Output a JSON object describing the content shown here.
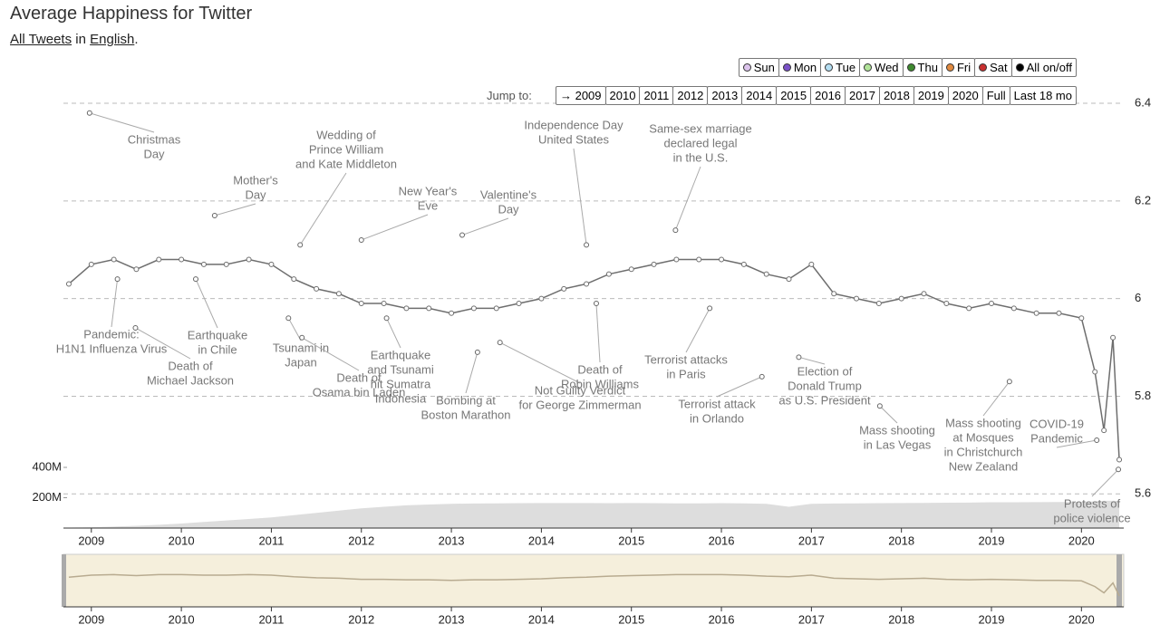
{
  "header": {
    "title": "Average Happiness for Twitter",
    "subtitle": [
      "All Tweets",
      "in",
      "English",
      "."
    ]
  },
  "controls": {
    "days": [
      {
        "name": "Sun",
        "color": "#dcc4ec"
      },
      {
        "name": "Mon",
        "color": "#7b52c8"
      },
      {
        "name": "Tue",
        "color": "#b4def2"
      },
      {
        "name": "Wed",
        "color": "#b2e49a"
      },
      {
        "name": "Thu",
        "color": "#3f8a30"
      },
      {
        "name": "Fri",
        "color": "#e08a40"
      },
      {
        "name": "Sat",
        "color": "#c83030"
      },
      {
        "name": "All on/off",
        "color": "#000000"
      }
    ],
    "jump_label": "Jump to:",
    "jump": [
      "→ 2009",
      "2010",
      "2011",
      "2012",
      "2013",
      "2014",
      "2015",
      "2016",
      "2017",
      "2018",
      "2019",
      "2020",
      "Full",
      "Last 18 mo"
    ]
  },
  "chart_data": {
    "type": "line",
    "x": [
      2008.75,
      2009.0,
      2009.25,
      2009.5,
      2009.75,
      2010.0,
      2010.25,
      2010.5,
      2010.75,
      2011.0,
      2011.25,
      2011.5,
      2011.75,
      2012.0,
      2012.25,
      2012.5,
      2012.75,
      2013.0,
      2013.25,
      2013.5,
      2013.75,
      2014.0,
      2014.25,
      2014.5,
      2014.75,
      2015.0,
      2015.25,
      2015.5,
      2015.75,
      2016.0,
      2016.25,
      2016.5,
      2016.75,
      2017.0,
      2017.25,
      2017.5,
      2017.75,
      2018.0,
      2018.25,
      2018.5,
      2018.75,
      2019.0,
      2019.25,
      2019.5,
      2019.75,
      2020.0,
      2020.15,
      2020.25,
      2020.35,
      2020.42
    ],
    "series": [
      {
        "color": "#6e6e6e",
        "values": [
          6.03,
          6.07,
          6.08,
          6.06,
          6.08,
          6.08,
          6.07,
          6.07,
          6.08,
          6.07,
          6.04,
          6.02,
          6.01,
          5.99,
          5.99,
          5.98,
          5.98,
          5.97,
          5.98,
          5.98,
          5.99,
          6.0,
          6.02,
          6.03,
          6.05,
          6.06,
          6.07,
          6.08,
          6.08,
          6.08,
          6.07,
          6.05,
          6.04,
          6.07,
          6.01,
          6.0,
          5.99,
          6.0,
          6.01,
          5.99,
          5.98,
          5.99,
          5.98,
          5.97,
          5.97,
          5.96,
          5.85,
          5.73,
          5.92,
          5.67
        ]
      },
      {
        "color": "#dddddd",
        "axis": "y2",
        "values": [
          3000000,
          5000000,
          10000000,
          15000000,
          22000000,
          30000000,
          40000000,
          50000000,
          60000000,
          70000000,
          85000000,
          100000000,
          115000000,
          130000000,
          140000000,
          150000000,
          155000000,
          160000000,
          162000000,
          163000000,
          164000000,
          165000000,
          165000000,
          165000000,
          164000000,
          165000000,
          164000000,
          163000000,
          163000000,
          164000000,
          163000000,
          160000000,
          140000000,
          160000000,
          162000000,
          163000000,
          164000000,
          165000000,
          166000000,
          167000000,
          168000000,
          170000000,
          170000000,
          171000000,
          172000000,
          173000000,
          176000000,
          180000000,
          180000000,
          178000000
        ]
      }
    ],
    "xlim": [
      2008.69,
      2020.47
    ],
    "xticks": [
      2009,
      2010,
      2011,
      2012,
      2013,
      2014,
      2015,
      2016,
      2017,
      2018,
      2019,
      2020
    ],
    "ylim": [
      5.53,
      6.4
    ],
    "yticks": [
      5.6,
      5.8,
      6.0,
      6.2,
      6.4
    ],
    "y2lim": [
      0,
      2800000000
    ],
    "y2ticks": [
      {
        "value": 200000000,
        "label": "200M"
      },
      {
        "value": 400000000,
        "label": "400M"
      }
    ],
    "grid": true,
    "annotations": [
      {
        "text": [
          "Christmas",
          "Day"
        ],
        "x": 2008.98,
        "y": 6.38
      },
      {
        "text": [
          "Pandemic:",
          "H1N1 Influenza Virus"
        ],
        "x": 2009.29,
        "y": 6.04
      },
      {
        "text": [
          "Death of",
          "Michael Jackson"
        ],
        "x": 2009.49,
        "y": 5.94
      },
      {
        "text": [
          "Mother's",
          "Day"
        ],
        "x": 2010.37,
        "y": 6.17
      },
      {
        "text": [
          "Earthquake",
          "in Chile"
        ],
        "x": 2010.16,
        "y": 6.04
      },
      {
        "text": [
          "Wedding of",
          "Prince William",
          "and Kate Middleton"
        ],
        "x": 2011.32,
        "y": 6.11
      },
      {
        "text": [
          "Tsunami in",
          "Japan"
        ],
        "x": 2011.19,
        "y": 5.96
      },
      {
        "text": [
          "Death of",
          "Osama bin Laden"
        ],
        "x": 2011.34,
        "y": 5.92
      },
      {
        "text": [
          "New Year's",
          "Eve"
        ],
        "x": 2012.0,
        "y": 6.12
      },
      {
        "text": [
          "Earthquake",
          "and Tsunami",
          "hit Sumatra",
          "Indonesia"
        ],
        "x": 2012.28,
        "y": 5.96
      },
      {
        "text": [
          "Valentine's",
          "Day"
        ],
        "x": 2013.12,
        "y": 6.13
      },
      {
        "text": [
          "Bombing at",
          "Boston Marathon"
        ],
        "x": 2013.29,
        "y": 5.89
      },
      {
        "text": [
          "Not Guilty Verdict",
          "for George Zimmerman"
        ],
        "x": 2013.54,
        "y": 5.91
      },
      {
        "text": [
          "Independence Day",
          "United States"
        ],
        "x": 2014.5,
        "y": 6.11
      },
      {
        "text": [
          "Death of",
          "Robin Williams"
        ],
        "x": 2014.61,
        "y": 5.99
      },
      {
        "text": [
          "Same-sex marriage",
          "declared legal",
          "in the U.S."
        ],
        "x": 2015.49,
        "y": 6.14
      },
      {
        "text": [
          "Terrorist attacks",
          "in Paris"
        ],
        "x": 2015.87,
        "y": 5.98
      },
      {
        "text": [
          "Terrorist attack",
          "in Orlando"
        ],
        "x": 2016.45,
        "y": 5.84
      },
      {
        "text": [
          "Election of",
          "Donald Trump",
          "as U.S. President"
        ],
        "x": 2016.86,
        "y": 5.88
      },
      {
        "text": [
          "Mass shooting",
          "in Las Vegas"
        ],
        "x": 2017.76,
        "y": 5.78
      },
      {
        "text": [
          "Mass shooting",
          "at Mosques",
          "in Christchurch",
          "New Zealand"
        ],
        "x": 2019.2,
        "y": 5.83
      },
      {
        "text": [
          "COVID-19",
          "Pandemic"
        ],
        "x": 2020.17,
        "y": 5.71
      },
      {
        "text": [
          "Protests of",
          "police violence"
        ],
        "x": 2020.41,
        "y": 5.65
      }
    ]
  }
}
